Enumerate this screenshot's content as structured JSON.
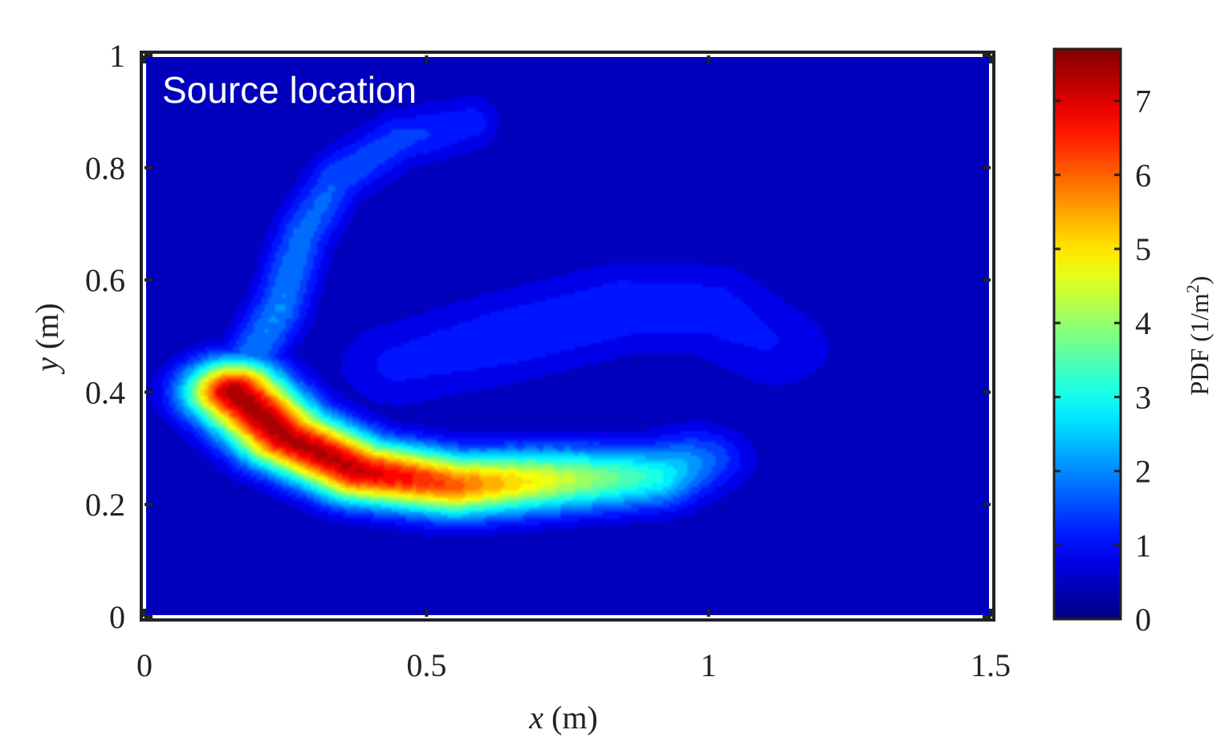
{
  "chart_data": {
    "type": "heatmap",
    "title": "",
    "annotation": "Source location",
    "xlabel_var": "x",
    "xlabel_unit": "(m)",
    "ylabel_var": "y",
    "ylabel_unit": "(m)",
    "xlim": [
      0,
      1.5
    ],
    "ylim": [
      0,
      1
    ],
    "x_ticks": [
      0,
      0.5,
      1,
      1.5
    ],
    "x_tick_labels": [
      "0",
      "0.5",
      "1",
      "1.5"
    ],
    "y_ticks": [
      0,
      0.2,
      0.4,
      0.6,
      0.8,
      1
    ],
    "y_tick_labels": [
      "0",
      "0.2",
      "0.4",
      "0.6",
      "0.8",
      "1"
    ],
    "colormap": "jet",
    "grid": false,
    "colorbar": {
      "label": "PDF (1/m",
      "label_sup": "2",
      "label_close": ")",
      "range": [
        0,
        7.7
      ],
      "ticks": [
        0,
        1,
        2,
        3,
        4,
        5,
        6,
        7
      ],
      "tick_labels": [
        "0",
        "1",
        "2",
        "3",
        "4",
        "5",
        "6",
        "7"
      ],
      "placement": "right"
    },
    "features": [
      {
        "name": "main band",
        "path": [
          [
            0.16,
            0.4
          ],
          [
            0.25,
            0.32
          ],
          [
            0.38,
            0.26
          ],
          [
            0.55,
            0.235
          ],
          [
            0.75,
            0.245
          ],
          [
            0.9,
            0.25
          ],
          [
            0.98,
            0.28
          ]
        ],
        "peak": [
          7.7,
          7.6,
          7.4,
          6.2,
          4.3,
          3.0,
          1.6
        ],
        "width_x": 0.085,
        "width_y": 0.055
      },
      {
        "name": "left arm",
        "path": [
          [
            0.17,
            0.43
          ],
          [
            0.24,
            0.55
          ],
          [
            0.28,
            0.68
          ],
          [
            0.34,
            0.78
          ],
          [
            0.45,
            0.85
          ],
          [
            0.58,
            0.88
          ]
        ],
        "peak": [
          1.7,
          1.8,
          1.6,
          1.4,
          1.2,
          0.9
        ],
        "width_x": 0.05,
        "width_y": 0.05
      },
      {
        "name": "upper lobe",
        "path": [
          [
            0.45,
            0.45
          ],
          [
            0.65,
            0.5
          ],
          [
            0.85,
            0.55
          ],
          [
            1.0,
            0.55
          ],
          [
            1.12,
            0.48
          ]
        ],
        "peak": [
          0.8,
          1.0,
          1.0,
          0.9,
          0.7
        ],
        "width_x": 0.11,
        "width_y": 0.08
      }
    ]
  },
  "colors": {
    "background": "#00008f",
    "axes_frame": "#222222",
    "inner_border": "#ffffff"
  }
}
